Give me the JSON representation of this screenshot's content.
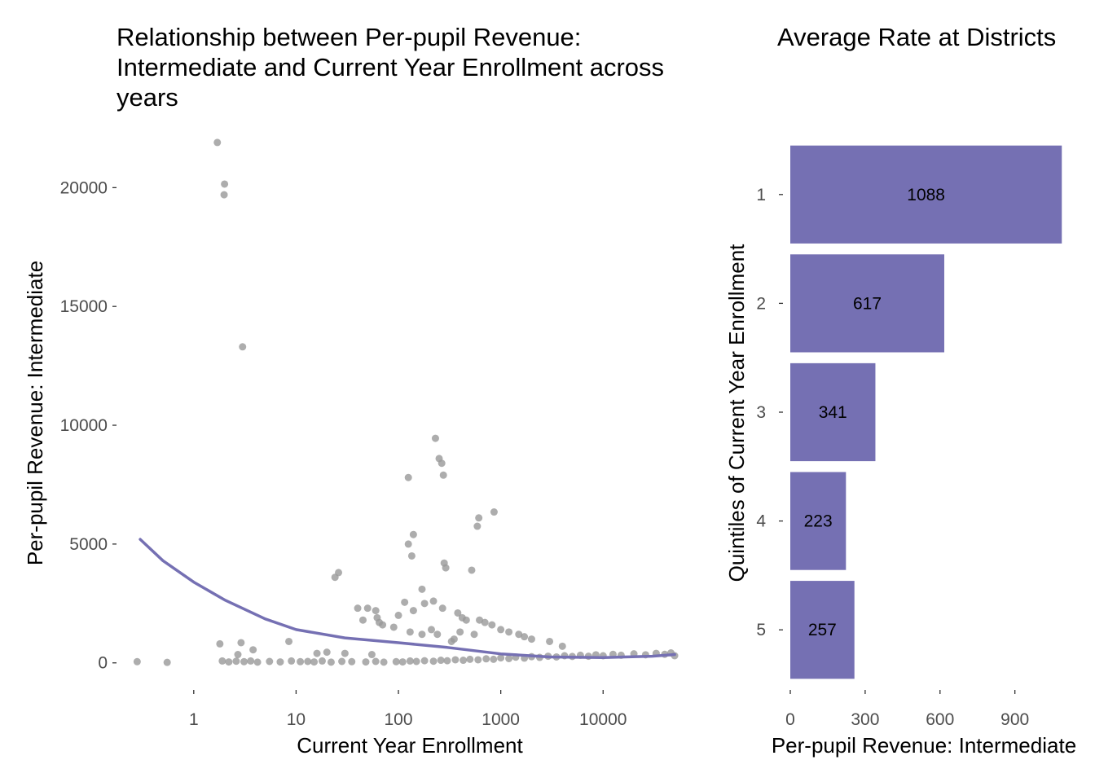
{
  "chart_data": [
    {
      "type": "scatter",
      "title_lines": [
        "Relationship between Per-pupil Revenue:",
        "Intermediate and Current Year Enrollment across",
        "years"
      ],
      "xlabel": "Current Year Enrollment",
      "ylabel": "Per-pupil Revenue: Intermediate",
      "x_scale": "log10",
      "xlim": [
        0.2,
        60000
      ],
      "ylim": [
        -900,
        22000
      ],
      "x_ticks": [
        1,
        10,
        100,
        1000,
        10000
      ],
      "x_tick_labels": [
        "1",
        "10",
        "100",
        "1000",
        "10000"
      ],
      "y_ticks": [
        0,
        5000,
        10000,
        15000,
        20000
      ],
      "y_tick_labels": [
        "0",
        "5000",
        "10000",
        "15000",
        "20000"
      ],
      "grid": false,
      "point_color": "#999999",
      "trend_color": "#7570b3",
      "points": [
        {
          "x": 0.28,
          "y": 50
        },
        {
          "x": 0.55,
          "y": 20
        },
        {
          "x": 1.7,
          "y": 21900
        },
        {
          "x": 2.0,
          "y": 20150
        },
        {
          "x": 1.98,
          "y": 19700
        },
        {
          "x": 3.0,
          "y": 13300
        },
        {
          "x": 230,
          "y": 9450
        },
        {
          "x": 250,
          "y": 8600
        },
        {
          "x": 265,
          "y": 8400
        },
        {
          "x": 275,
          "y": 7900
        },
        {
          "x": 125,
          "y": 7800
        },
        {
          "x": 860,
          "y": 6350
        },
        {
          "x": 610,
          "y": 6100
        },
        {
          "x": 590,
          "y": 5750
        },
        {
          "x": 140,
          "y": 5400
        },
        {
          "x": 125,
          "y": 5000
        },
        {
          "x": 135,
          "y": 4500
        },
        {
          "x": 280,
          "y": 4200
        },
        {
          "x": 290,
          "y": 4000
        },
        {
          "x": 520,
          "y": 3900
        },
        {
          "x": 26,
          "y": 3800
        },
        {
          "x": 24,
          "y": 3600
        },
        {
          "x": 170,
          "y": 3100
        },
        {
          "x": 220,
          "y": 2600
        },
        {
          "x": 180,
          "y": 2500
        },
        {
          "x": 115,
          "y": 2550
        },
        {
          "x": 140,
          "y": 2200
        },
        {
          "x": 270,
          "y": 2300
        },
        {
          "x": 40,
          "y": 2300
        },
        {
          "x": 50,
          "y": 2300
        },
        {
          "x": 60,
          "y": 2200
        },
        {
          "x": 62,
          "y": 1900
        },
        {
          "x": 65,
          "y": 1700
        },
        {
          "x": 70,
          "y": 1600
        },
        {
          "x": 45,
          "y": 1800
        },
        {
          "x": 100,
          "y": 2000
        },
        {
          "x": 90,
          "y": 1500
        },
        {
          "x": 380,
          "y": 2100
        },
        {
          "x": 420,
          "y": 1900
        },
        {
          "x": 460,
          "y": 1800
        },
        {
          "x": 620,
          "y": 1800
        },
        {
          "x": 700,
          "y": 1700
        },
        {
          "x": 820,
          "y": 1600
        },
        {
          "x": 1000,
          "y": 1400
        },
        {
          "x": 1200,
          "y": 1300
        },
        {
          "x": 1500,
          "y": 1200
        },
        {
          "x": 1700,
          "y": 1100
        },
        {
          "x": 2000,
          "y": 1000
        },
        {
          "x": 3000,
          "y": 900
        },
        {
          "x": 4000,
          "y": 700
        },
        {
          "x": 400,
          "y": 1300
        },
        {
          "x": 550,
          "y": 1200
        },
        {
          "x": 210,
          "y": 1400
        },
        {
          "x": 240,
          "y": 1200
        },
        {
          "x": 170,
          "y": 1200
        },
        {
          "x": 130,
          "y": 1300
        },
        {
          "x": 330,
          "y": 900
        },
        {
          "x": 350,
          "y": 1000
        },
        {
          "x": 1.8,
          "y": 800
        },
        {
          "x": 2.9,
          "y": 850
        },
        {
          "x": 3.8,
          "y": 550
        },
        {
          "x": 8.5,
          "y": 900
        },
        {
          "x": 16,
          "y": 400
        },
        {
          "x": 20,
          "y": 450
        },
        {
          "x": 2.7,
          "y": 350
        },
        {
          "x": 30,
          "y": 400
        },
        {
          "x": 55,
          "y": 350
        },
        {
          "x": 1.9,
          "y": 80
        },
        {
          "x": 2.2,
          "y": 40
        },
        {
          "x": 2.6,
          "y": 70
        },
        {
          "x": 3.1,
          "y": 50
        },
        {
          "x": 3.6,
          "y": 80
        },
        {
          "x": 4.2,
          "y": 30
        },
        {
          "x": 5.5,
          "y": 60
        },
        {
          "x": 7,
          "y": 40
        },
        {
          "x": 9,
          "y": 80
        },
        {
          "x": 11,
          "y": 50
        },
        {
          "x": 13,
          "y": 60
        },
        {
          "x": 15,
          "y": 40
        },
        {
          "x": 18,
          "y": 80
        },
        {
          "x": 22,
          "y": 30
        },
        {
          "x": 28,
          "y": 60
        },
        {
          "x": 35,
          "y": 50
        },
        {
          "x": 48,
          "y": 40
        },
        {
          "x": 60,
          "y": 60
        },
        {
          "x": 72,
          "y": 30
        },
        {
          "x": 95,
          "y": 50
        },
        {
          "x": 110,
          "y": 40
        },
        {
          "x": 130,
          "y": 80
        },
        {
          "x": 150,
          "y": 60
        },
        {
          "x": 180,
          "y": 90
        },
        {
          "x": 220,
          "y": 70
        },
        {
          "x": 260,
          "y": 110
        },
        {
          "x": 300,
          "y": 90
        },
        {
          "x": 360,
          "y": 130
        },
        {
          "x": 430,
          "y": 110
        },
        {
          "x": 500,
          "y": 150
        },
        {
          "x": 600,
          "y": 130
        },
        {
          "x": 720,
          "y": 170
        },
        {
          "x": 850,
          "y": 150
        },
        {
          "x": 1000,
          "y": 210
        },
        {
          "x": 1200,
          "y": 180
        },
        {
          "x": 1400,
          "y": 240
        },
        {
          "x": 1700,
          "y": 200
        },
        {
          "x": 2000,
          "y": 260
        },
        {
          "x": 2400,
          "y": 230
        },
        {
          "x": 2900,
          "y": 280
        },
        {
          "x": 3500,
          "y": 250
        },
        {
          "x": 4200,
          "y": 300
        },
        {
          "x": 5000,
          "y": 270
        },
        {
          "x": 6000,
          "y": 320
        },
        {
          "x": 7200,
          "y": 280
        },
        {
          "x": 8500,
          "y": 340
        },
        {
          "x": 10000,
          "y": 300
        },
        {
          "x": 12500,
          "y": 360
        },
        {
          "x": 15000,
          "y": 320
        },
        {
          "x": 20000,
          "y": 380
        },
        {
          "x": 26000,
          "y": 340
        },
        {
          "x": 33000,
          "y": 400
        },
        {
          "x": 40000,
          "y": 360
        },
        {
          "x": 46000,
          "y": 420
        },
        {
          "x": 50000,
          "y": 300
        }
      ],
      "trend": [
        {
          "x": 0.3,
          "y": 5200
        },
        {
          "x": 0.5,
          "y": 4300
        },
        {
          "x": 1,
          "y": 3400
        },
        {
          "x": 2,
          "y": 2650
        },
        {
          "x": 5,
          "y": 1850
        },
        {
          "x": 10,
          "y": 1400
        },
        {
          "x": 30,
          "y": 1050
        },
        {
          "x": 100,
          "y": 850
        },
        {
          "x": 300,
          "y": 650
        },
        {
          "x": 1000,
          "y": 380
        },
        {
          "x": 3000,
          "y": 250
        },
        {
          "x": 10000,
          "y": 220
        },
        {
          "x": 30000,
          "y": 280
        },
        {
          "x": 50000,
          "y": 350
        }
      ]
    },
    {
      "type": "bar",
      "orientation": "horizontal",
      "title": "Average Rate at Districts",
      "xlabel": "Per-pupil Revenue: Intermediate",
      "ylabel": "Quintiles of Current Year Enrollment",
      "categories": [
        "1",
        "2",
        "3",
        "4",
        "5"
      ],
      "values": [
        1088,
        617,
        341,
        223,
        257
      ],
      "data_labels": [
        "1088",
        "617",
        "341",
        "223",
        "257"
      ],
      "xlim": [
        0,
        1110
      ],
      "x_ticks": [
        0,
        300,
        600,
        900
      ],
      "x_tick_labels": [
        "0",
        "300",
        "600",
        "900"
      ],
      "grid": false,
      "bar_color": "#7570b3"
    }
  ]
}
